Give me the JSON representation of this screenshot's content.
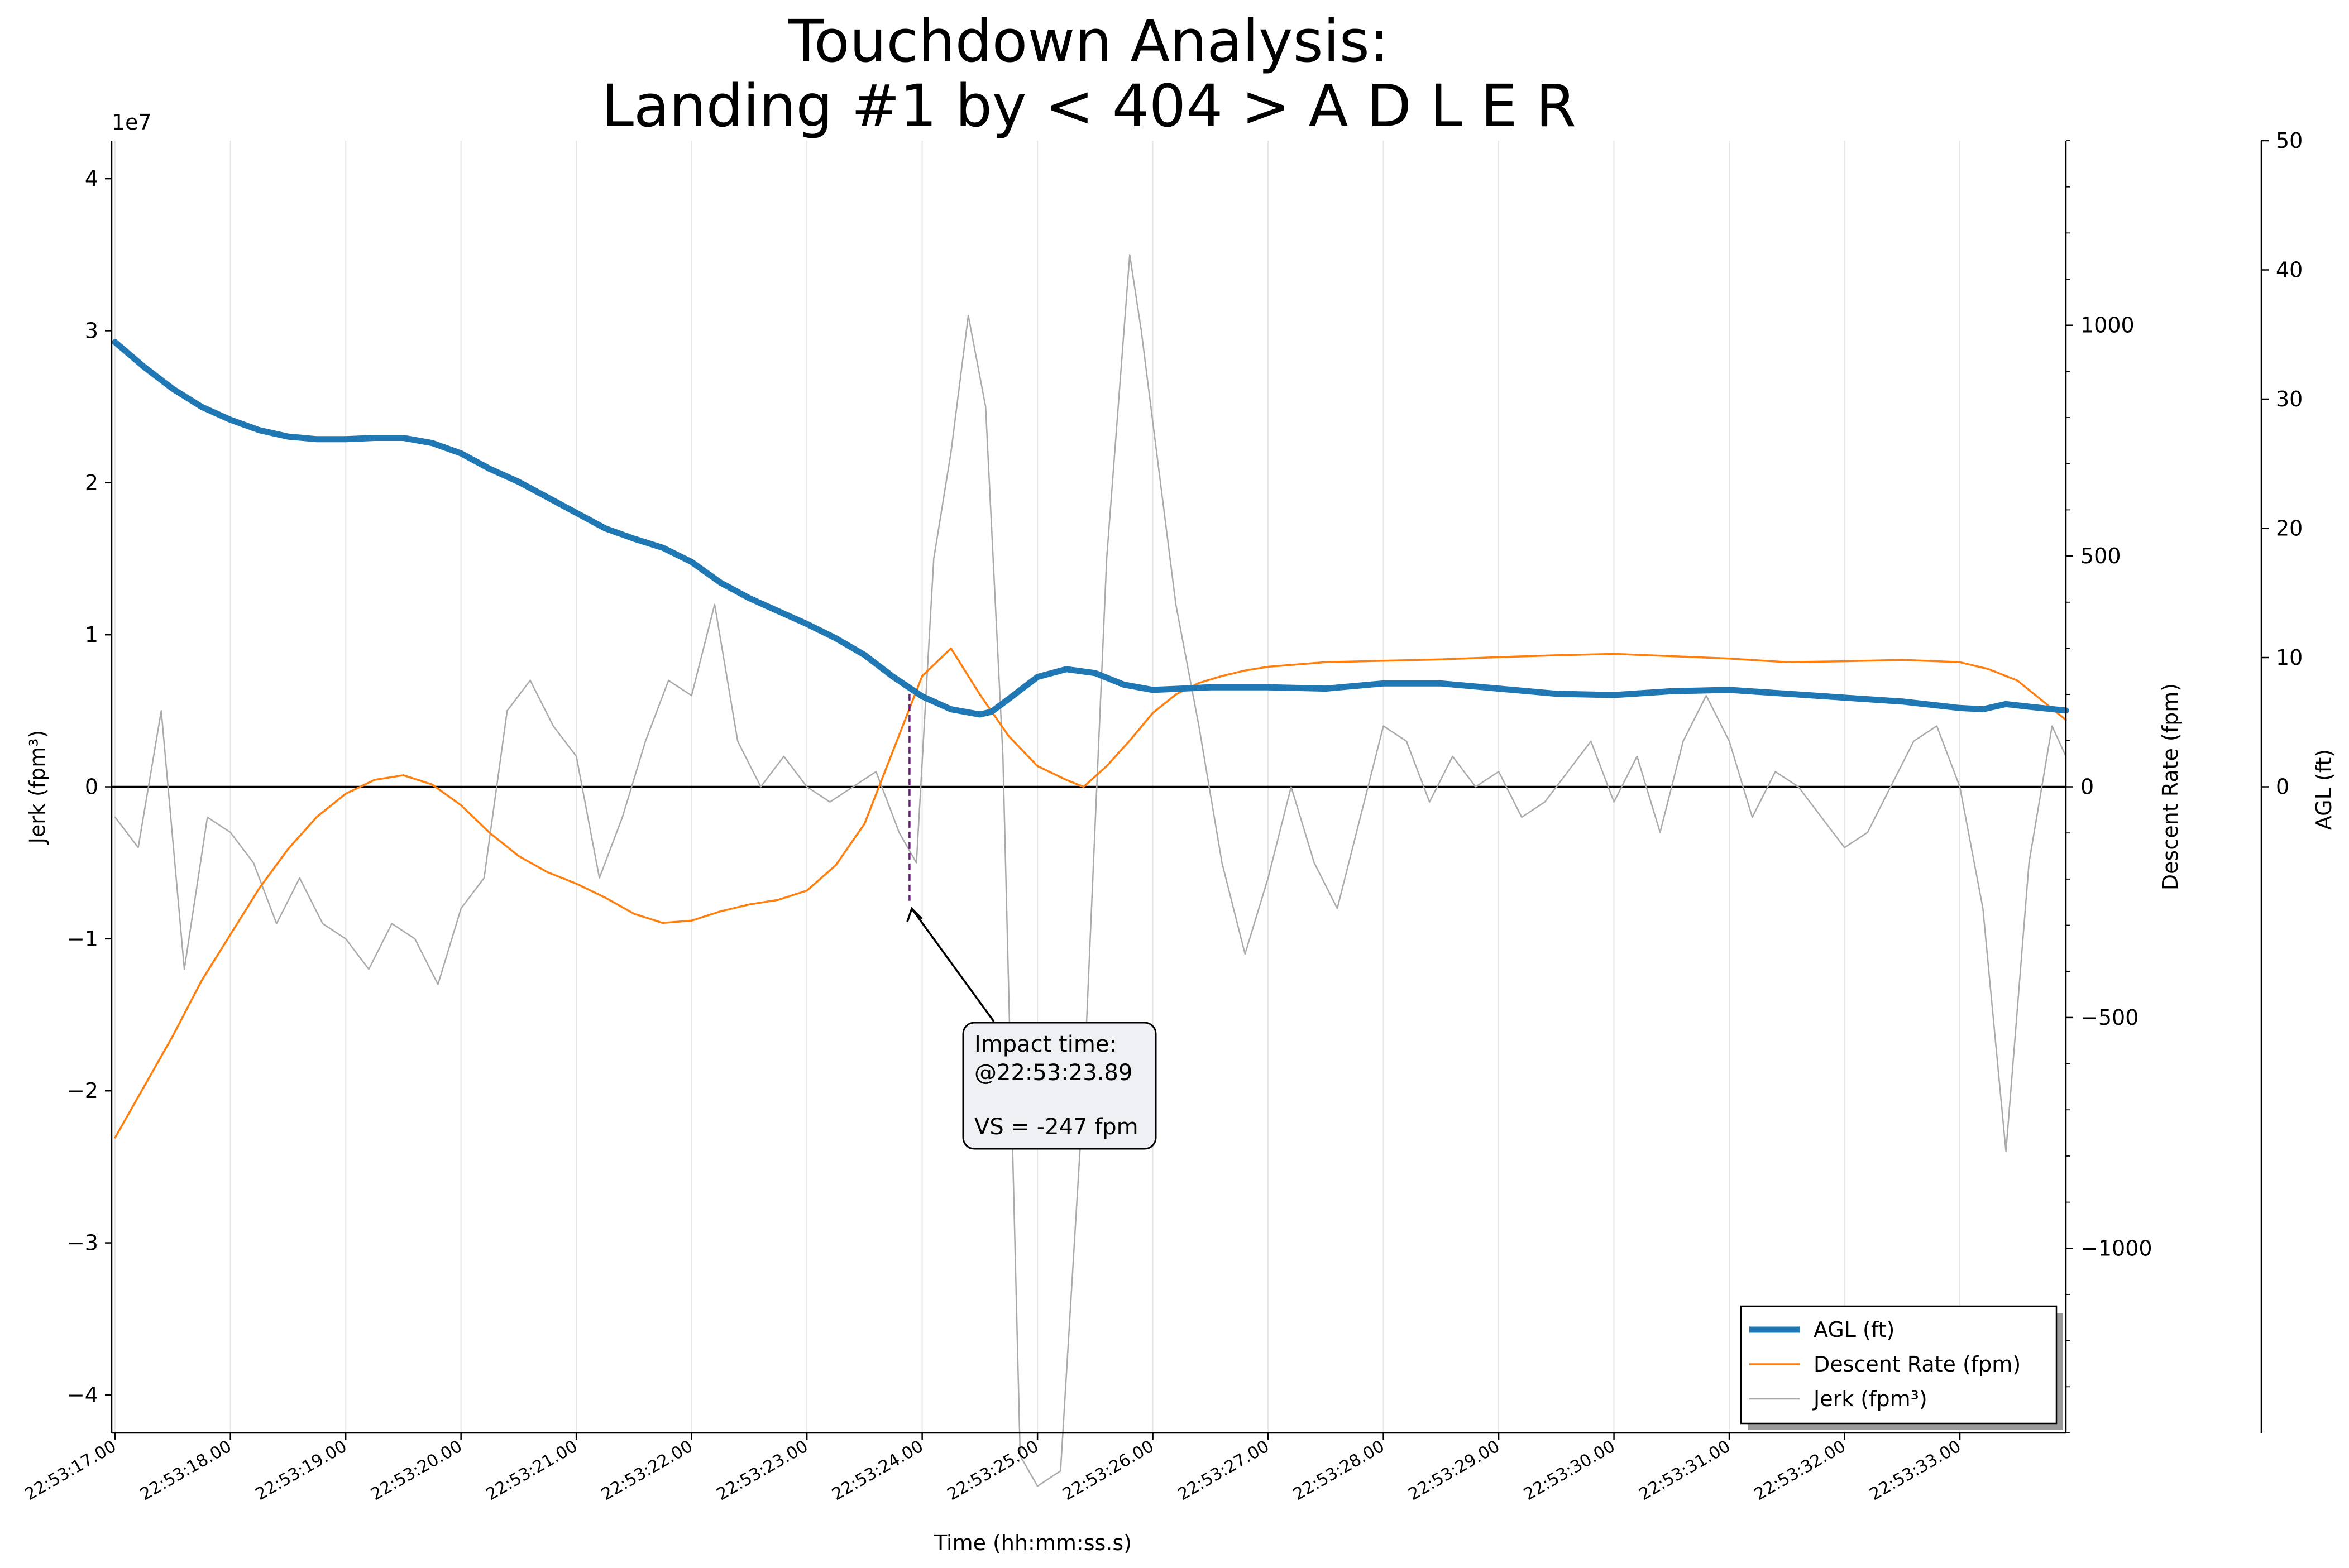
{
  "chart_data": {
    "type": "line",
    "title_line1": "Touchdown Analysis:",
    "title_line2": "Landing #1 by < 404 > A D L E R",
    "xlabel": "Time (hh:mm:ss.s)",
    "x_start_seconds": 17.0,
    "x_range_seconds": [
      16.97,
      33.92
    ],
    "x_tick_seconds": [
      17,
      18,
      19,
      20,
      21,
      22,
      23,
      24,
      25,
      26,
      27,
      28,
      29,
      30,
      31,
      32,
      33
    ],
    "x_tick_labels": [
      "22:53:17.00",
      "22:53:18.00",
      "22:53:19.00",
      "22:53:20.00",
      "22:53:21.00",
      "22:53:22.00",
      "22:53:23.00",
      "22:53:24.00",
      "22:53:25.00",
      "22:53:26.00",
      "22:53:27.00",
      "22:53:28.00",
      "22:53:29.00",
      "22:53:30.00",
      "22:53:31.00",
      "22:53:32.00",
      "22:53:33.00"
    ],
    "axes": {
      "jerk": {
        "label": "Jerk (fpm³)",
        "offset_label": "1e7",
        "ylim": [
          -42500000,
          42500000
        ],
        "ticks": [
          -4,
          -3,
          -2,
          -1,
          0,
          1,
          2,
          3,
          4
        ],
        "tick_labels": [
          "−4",
          "−3",
          "−2",
          "−1",
          "0",
          "1",
          "2",
          "3",
          "4"
        ],
        "tick_scale": 10000000
      },
      "descent": {
        "label": "Descent Rate (fpm)",
        "ylim": [
          -1400,
          1400
        ],
        "ticks": [
          -1000,
          -500,
          0,
          500,
          1000
        ],
        "tick_labels": [
          "−1000",
          "−500",
          "0",
          "500",
          "1000"
        ],
        "minor_step": 100
      },
      "agl": {
        "label": "AGL (ft)",
        "ylim": [
          -50,
          50
        ],
        "ticks": [
          0,
          10,
          20,
          30,
          40,
          50
        ],
        "tick_labels": [
          "0",
          "10",
          "20",
          "30",
          "40",
          "50"
        ]
      }
    },
    "series": [
      {
        "name": "AGL (ft)",
        "axis": "agl",
        "color": "#1f77b4",
        "x": [
          17.0,
          17.25,
          17.5,
          17.75,
          18.0,
          18.25,
          18.5,
          18.75,
          19.0,
          19.25,
          19.5,
          19.75,
          20.0,
          20.25,
          20.5,
          20.75,
          21.0,
          21.25,
          21.5,
          21.75,
          22.0,
          22.25,
          22.5,
          22.75,
          23.0,
          23.25,
          23.5,
          23.75,
          24.0,
          24.25,
          24.5,
          24.6,
          24.75,
          25.0,
          25.25,
          25.5,
          25.75,
          26.0,
          26.25,
          26.5,
          27.0,
          27.5,
          28.0,
          28.5,
          29.0,
          29.5,
          30.0,
          30.5,
          31.0,
          31.5,
          32.0,
          32.5,
          33.0,
          33.2,
          33.4,
          33.6,
          33.92
        ],
        "y": [
          34.4,
          32.5,
          30.8,
          29.4,
          28.4,
          27.6,
          27.1,
          26.9,
          26.9,
          27.0,
          27.0,
          26.6,
          25.8,
          24.6,
          23.6,
          22.4,
          21.2,
          20.0,
          19.2,
          18.5,
          17.4,
          15.8,
          14.6,
          13.6,
          12.6,
          11.5,
          10.2,
          8.5,
          7.0,
          6.0,
          5.6,
          5.8,
          6.8,
          8.5,
          9.1,
          8.8,
          7.9,
          7.5,
          7.6,
          7.7,
          7.7,
          7.6,
          8.0,
          8.0,
          7.6,
          7.2,
          7.1,
          7.4,
          7.5,
          7.2,
          6.9,
          6.6,
          6.1,
          6.0,
          6.4,
          6.2,
          5.9
        ]
      },
      {
        "name": "Descent Rate (fpm)",
        "axis": "descent",
        "color": "#ff7f0e",
        "x": [
          17.0,
          17.25,
          17.5,
          17.75,
          18.0,
          18.25,
          18.5,
          18.75,
          19.0,
          19.25,
          19.5,
          19.75,
          20.0,
          20.25,
          20.5,
          20.75,
          21.0,
          21.25,
          21.5,
          21.75,
          22.0,
          22.25,
          22.5,
          22.75,
          23.0,
          23.25,
          23.5,
          23.75,
          24.0,
          24.25,
          24.5,
          24.75,
          25.0,
          25.25,
          25.4,
          25.6,
          25.8,
          26.0,
          26.2,
          26.4,
          26.6,
          26.8,
          27.0,
          27.5,
          28.0,
          28.5,
          29.0,
          29.5,
          30.0,
          30.5,
          31.0,
          31.5,
          32.0,
          32.5,
          33.0,
          33.25,
          33.5,
          33.92
        ],
        "y": [
          -760,
          -650,
          -540,
          -420,
          -320,
          -220,
          -135,
          -65,
          -15,
          15,
          25,
          5,
          -40,
          -100,
          -150,
          -185,
          -210,
          -240,
          -275,
          -295,
          -290,
          -270,
          -255,
          -245,
          -225,
          -170,
          -80,
          80,
          240,
          300,
          200,
          110,
          45,
          15,
          0,
          45,
          100,
          160,
          200,
          225,
          240,
          252,
          260,
          270,
          273,
          276,
          281,
          285,
          288,
          283,
          278,
          270,
          272,
          275,
          270,
          255,
          230,
          145
        ]
      },
      {
        "name": "Jerk (fpm³)",
        "axis": "jerk",
        "color": "#aaaaaa",
        "x": [
          17.0,
          17.2,
          17.4,
          17.6,
          17.8,
          18.0,
          18.2,
          18.4,
          18.6,
          18.8,
          19.0,
          19.2,
          19.4,
          19.6,
          19.8,
          20.0,
          20.2,
          20.4,
          20.6,
          20.8,
          21.0,
          21.2,
          21.4,
          21.6,
          21.8,
          22.0,
          22.2,
          22.4,
          22.6,
          22.8,
          23.0,
          23.2,
          23.4,
          23.6,
          23.8,
          23.95,
          24.1,
          24.25,
          24.4,
          24.55,
          24.7,
          24.85,
          25.0,
          25.2,
          25.4,
          25.6,
          25.8,
          25.9,
          26.0,
          26.2,
          26.4,
          26.6,
          26.8,
          27.0,
          27.2,
          27.4,
          27.6,
          27.8,
          28.0,
          28.2,
          28.4,
          28.6,
          28.8,
          29.0,
          29.2,
          29.4,
          29.6,
          29.8,
          30.0,
          30.2,
          30.4,
          30.6,
          30.8,
          31.0,
          31.2,
          31.4,
          31.6,
          31.8,
          32.0,
          32.2,
          32.4,
          32.6,
          32.8,
          33.0,
          33.2,
          33.4,
          33.6,
          33.8,
          33.92
        ],
        "y": [
          -0.2,
          -0.4,
          0.5,
          -1.2,
          -0.2,
          -0.3,
          -0.5,
          -0.9,
          -0.6,
          -0.9,
          -1.0,
          -1.2,
          -0.9,
          -1.0,
          -1.3,
          -0.8,
          -0.6,
          0.5,
          0.7,
          0.4,
          0.2,
          -0.6,
          -0.2,
          0.3,
          0.7,
          0.6,
          1.2,
          0.3,
          0.0,
          0.2,
          0.0,
          -0.1,
          0.0,
          0.1,
          -0.3,
          -0.5,
          1.5,
          2.2,
          3.1,
          2.5,
          0.2,
          -4.4,
          -4.6,
          -4.5,
          -2.0,
          1.5,
          3.5,
          3.0,
          2.4,
          1.2,
          0.4,
          -0.5,
          -1.1,
          -0.6,
          0.0,
          -0.5,
          -0.8,
          -0.2,
          0.4,
          0.3,
          -0.1,
          0.2,
          0.0,
          0.1,
          -0.2,
          -0.1,
          0.1,
          0.3,
          -0.1,
          0.2,
          -0.3,
          0.3,
          0.6,
          0.3,
          -0.2,
          0.1,
          0.0,
          -0.2,
          -0.4,
          -0.3,
          0.0,
          0.3,
          0.4,
          0.0,
          -0.8,
          -2.4,
          -0.5,
          0.4,
          0.2
        ],
        "y_scale": 10000000
      }
    ],
    "impact": {
      "x": 23.89,
      "agl_top": 7.2,
      "descent_bottom": -247,
      "text_line1": "Impact time:",
      "text_line2": "@22:53:23.89",
      "text_line3": "VS = -247 fpm"
    },
    "legend": {
      "position": "lower right",
      "entries": [
        "AGL (ft)",
        "Descent Rate (fpm)",
        "Jerk (fpm³)"
      ]
    }
  }
}
